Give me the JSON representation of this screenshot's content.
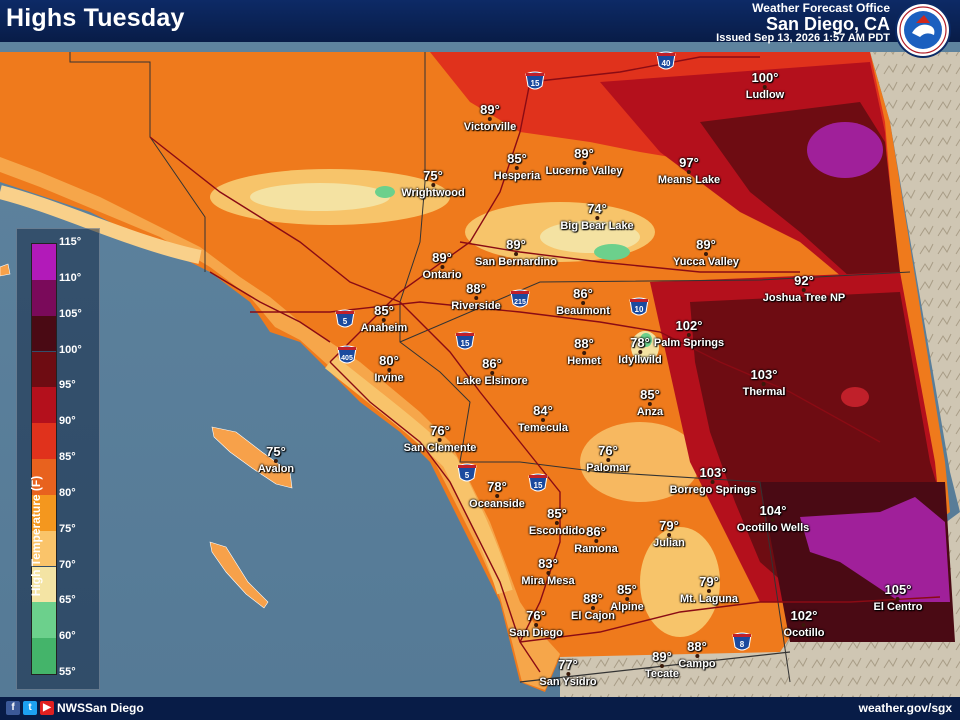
{
  "header": {
    "title": "Highs Tuesday",
    "office_line1": "Weather Forecast Office",
    "office_line2": "San Diego, CA",
    "issued": "Issued Sep 13, 2026 1:57 AM PDT",
    "logo_icon": "nws-logo-icon"
  },
  "legend": {
    "title": "High Temperature (F)",
    "ticks": [
      "115°",
      "110°",
      "105°",
      "100°",
      "95°",
      "90°",
      "85°",
      "80°",
      "75°",
      "70°",
      "65°",
      "60°",
      "55°"
    ],
    "colors": [
      "#b21ab9",
      "#7a0a5a",
      "#4a0a14",
      "#6e0c12",
      "#b4101c",
      "#e0321c",
      "#e8621e",
      "#f4971e",
      "#fac46a",
      "#f4e4a4",
      "#6cd08c",
      "#44b46a",
      "#28a050"
    ]
  },
  "cities": [
    {
      "name": "Victorville",
      "temp": "89°"
    },
    {
      "name": "Hesperia",
      "temp": "85°"
    },
    {
      "name": "Lucerne Valley",
      "temp": "89°"
    },
    {
      "name": "Means Lake",
      "temp": "97°"
    },
    {
      "name": "Ludlow",
      "temp": "100°"
    },
    {
      "name": "Wrightwood",
      "temp": "75°"
    },
    {
      "name": "Big Bear Lake",
      "temp": "74°"
    },
    {
      "name": "Ontario",
      "temp": "89°"
    },
    {
      "name": "San Bernardino",
      "temp": "89°"
    },
    {
      "name": "Yucca Valley",
      "temp": "89°"
    },
    {
      "name": "Joshua Tree NP",
      "temp": "92°"
    },
    {
      "name": "Riverside",
      "temp": "88°"
    },
    {
      "name": "Beaumont",
      "temp": "86°"
    },
    {
      "name": "Anaheim",
      "temp": "85°"
    },
    {
      "name": "Palm Springs",
      "temp": "102°"
    },
    {
      "name": "Irvine",
      "temp": "80°"
    },
    {
      "name": "Hemet",
      "temp": "88°"
    },
    {
      "name": "Idyllwild",
      "temp": "78°"
    },
    {
      "name": "Lake Elsinore",
      "temp": "86°"
    },
    {
      "name": "Thermal",
      "temp": "103°"
    },
    {
      "name": "Anza",
      "temp": "85°"
    },
    {
      "name": "Temecula",
      "temp": "84°"
    },
    {
      "name": "San Clemente",
      "temp": "76°"
    },
    {
      "name": "Avalon",
      "temp": "75°"
    },
    {
      "name": "Palomar",
      "temp": "76°"
    },
    {
      "name": "Borrego Springs",
      "temp": "103°"
    },
    {
      "name": "Oceanside",
      "temp": "78°"
    },
    {
      "name": "Ocotillo Wells",
      "temp": "104°"
    },
    {
      "name": "Escondido",
      "temp": "85°"
    },
    {
      "name": "Ramona",
      "temp": "86°"
    },
    {
      "name": "Julian",
      "temp": "79°"
    },
    {
      "name": "Mira Mesa",
      "temp": "83°"
    },
    {
      "name": "El Cajon",
      "temp": "88°"
    },
    {
      "name": "Alpine",
      "temp": "85°"
    },
    {
      "name": "Mt. Laguna",
      "temp": "79°"
    },
    {
      "name": "El Centro",
      "temp": "105°"
    },
    {
      "name": "San Diego",
      "temp": "76°"
    },
    {
      "name": "Ocotillo",
      "temp": "102°"
    },
    {
      "name": "Campo",
      "temp": "88°"
    },
    {
      "name": "Tecate",
      "temp": "89°"
    },
    {
      "name": "San Ysidro",
      "temp": "77°"
    }
  ],
  "highways": [
    {
      "label": "15"
    },
    {
      "label": "40"
    },
    {
      "label": "5"
    },
    {
      "label": "405"
    },
    {
      "label": "15"
    },
    {
      "label": "215"
    },
    {
      "label": "10"
    },
    {
      "label": "5"
    },
    {
      "label": "15"
    },
    {
      "label": "8"
    }
  ],
  "footer": {
    "social_handle": "NWSSan Diego",
    "website": "weather.gov/sgx",
    "icons": [
      "facebook-icon",
      "twitter-icon",
      "youtube-icon"
    ]
  }
}
